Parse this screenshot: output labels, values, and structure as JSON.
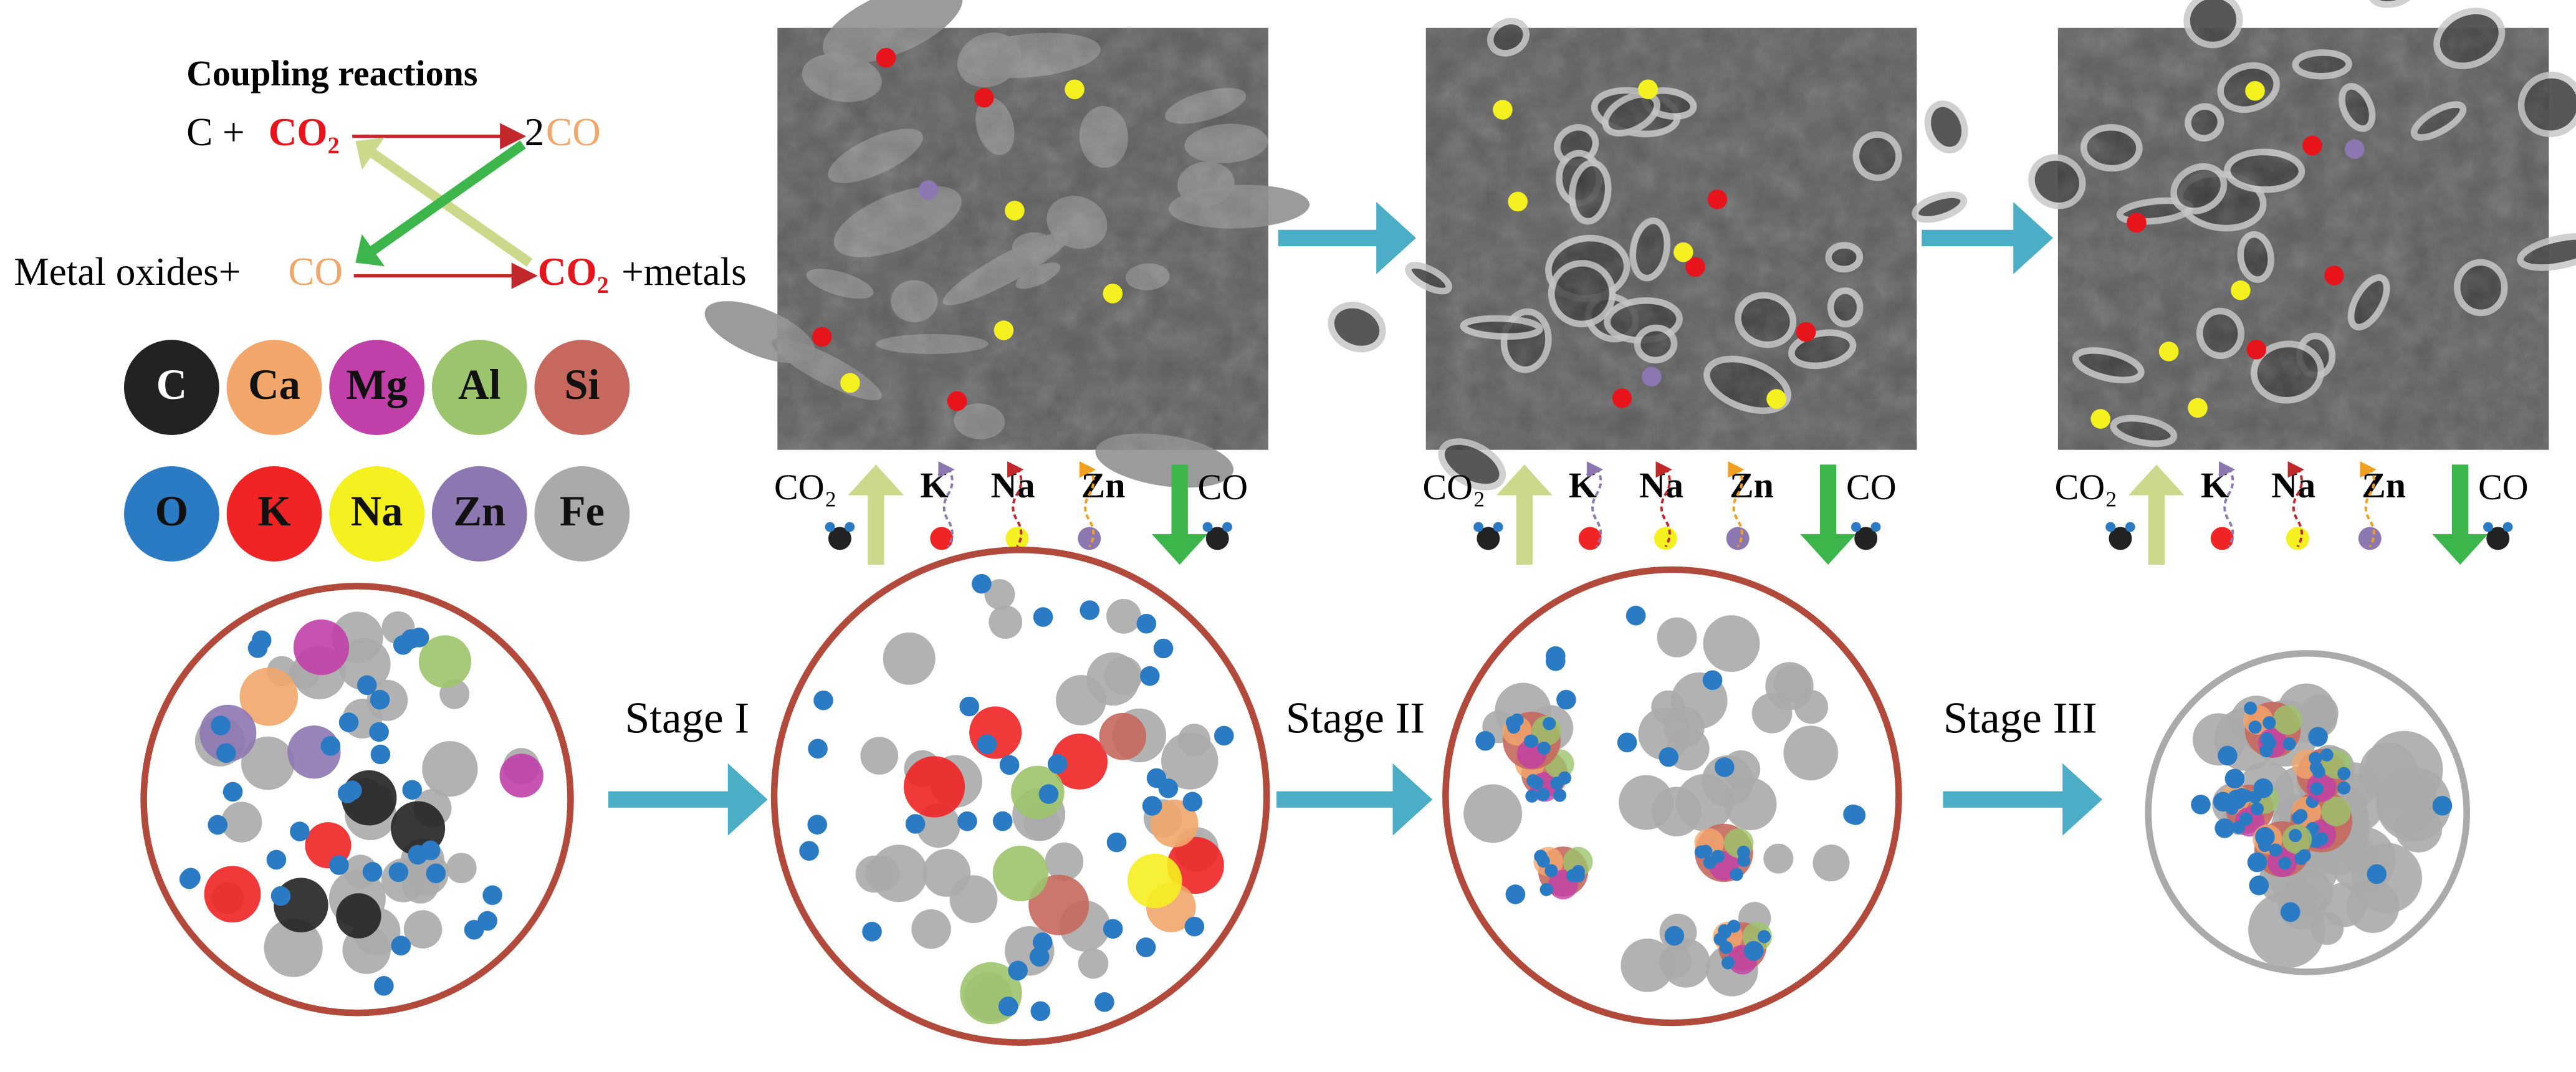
{
  "reactions": {
    "title": "Coupling reactions",
    "eq1": [
      "C + ",
      "CO₂",
      "2",
      "CO"
    ],
    "eq2": [
      "Metal oxides+",
      "CO",
      "CO₂",
      "+metals"
    ]
  },
  "elements": [
    "C",
    "Ca",
    "Mg",
    "Al",
    "Si",
    "O",
    "K",
    "Na",
    "Zn",
    "Fe"
  ],
  "panels": [
    {
      "gas_in": "CO₂",
      "species": [
        "K",
        "Na",
        "Zn"
      ],
      "gas_out": "CO"
    },
    {
      "gas_in": "CO₂",
      "species": [
        "K",
        "Na",
        "Zn"
      ],
      "gas_out": "CO"
    },
    {
      "gas_in": "CO₂",
      "species": [
        "K",
        "Na",
        "Zn"
      ],
      "gas_out": "CO"
    }
  ],
  "stages": [
    "Stage I",
    "Stage II",
    "Stage III"
  ]
}
